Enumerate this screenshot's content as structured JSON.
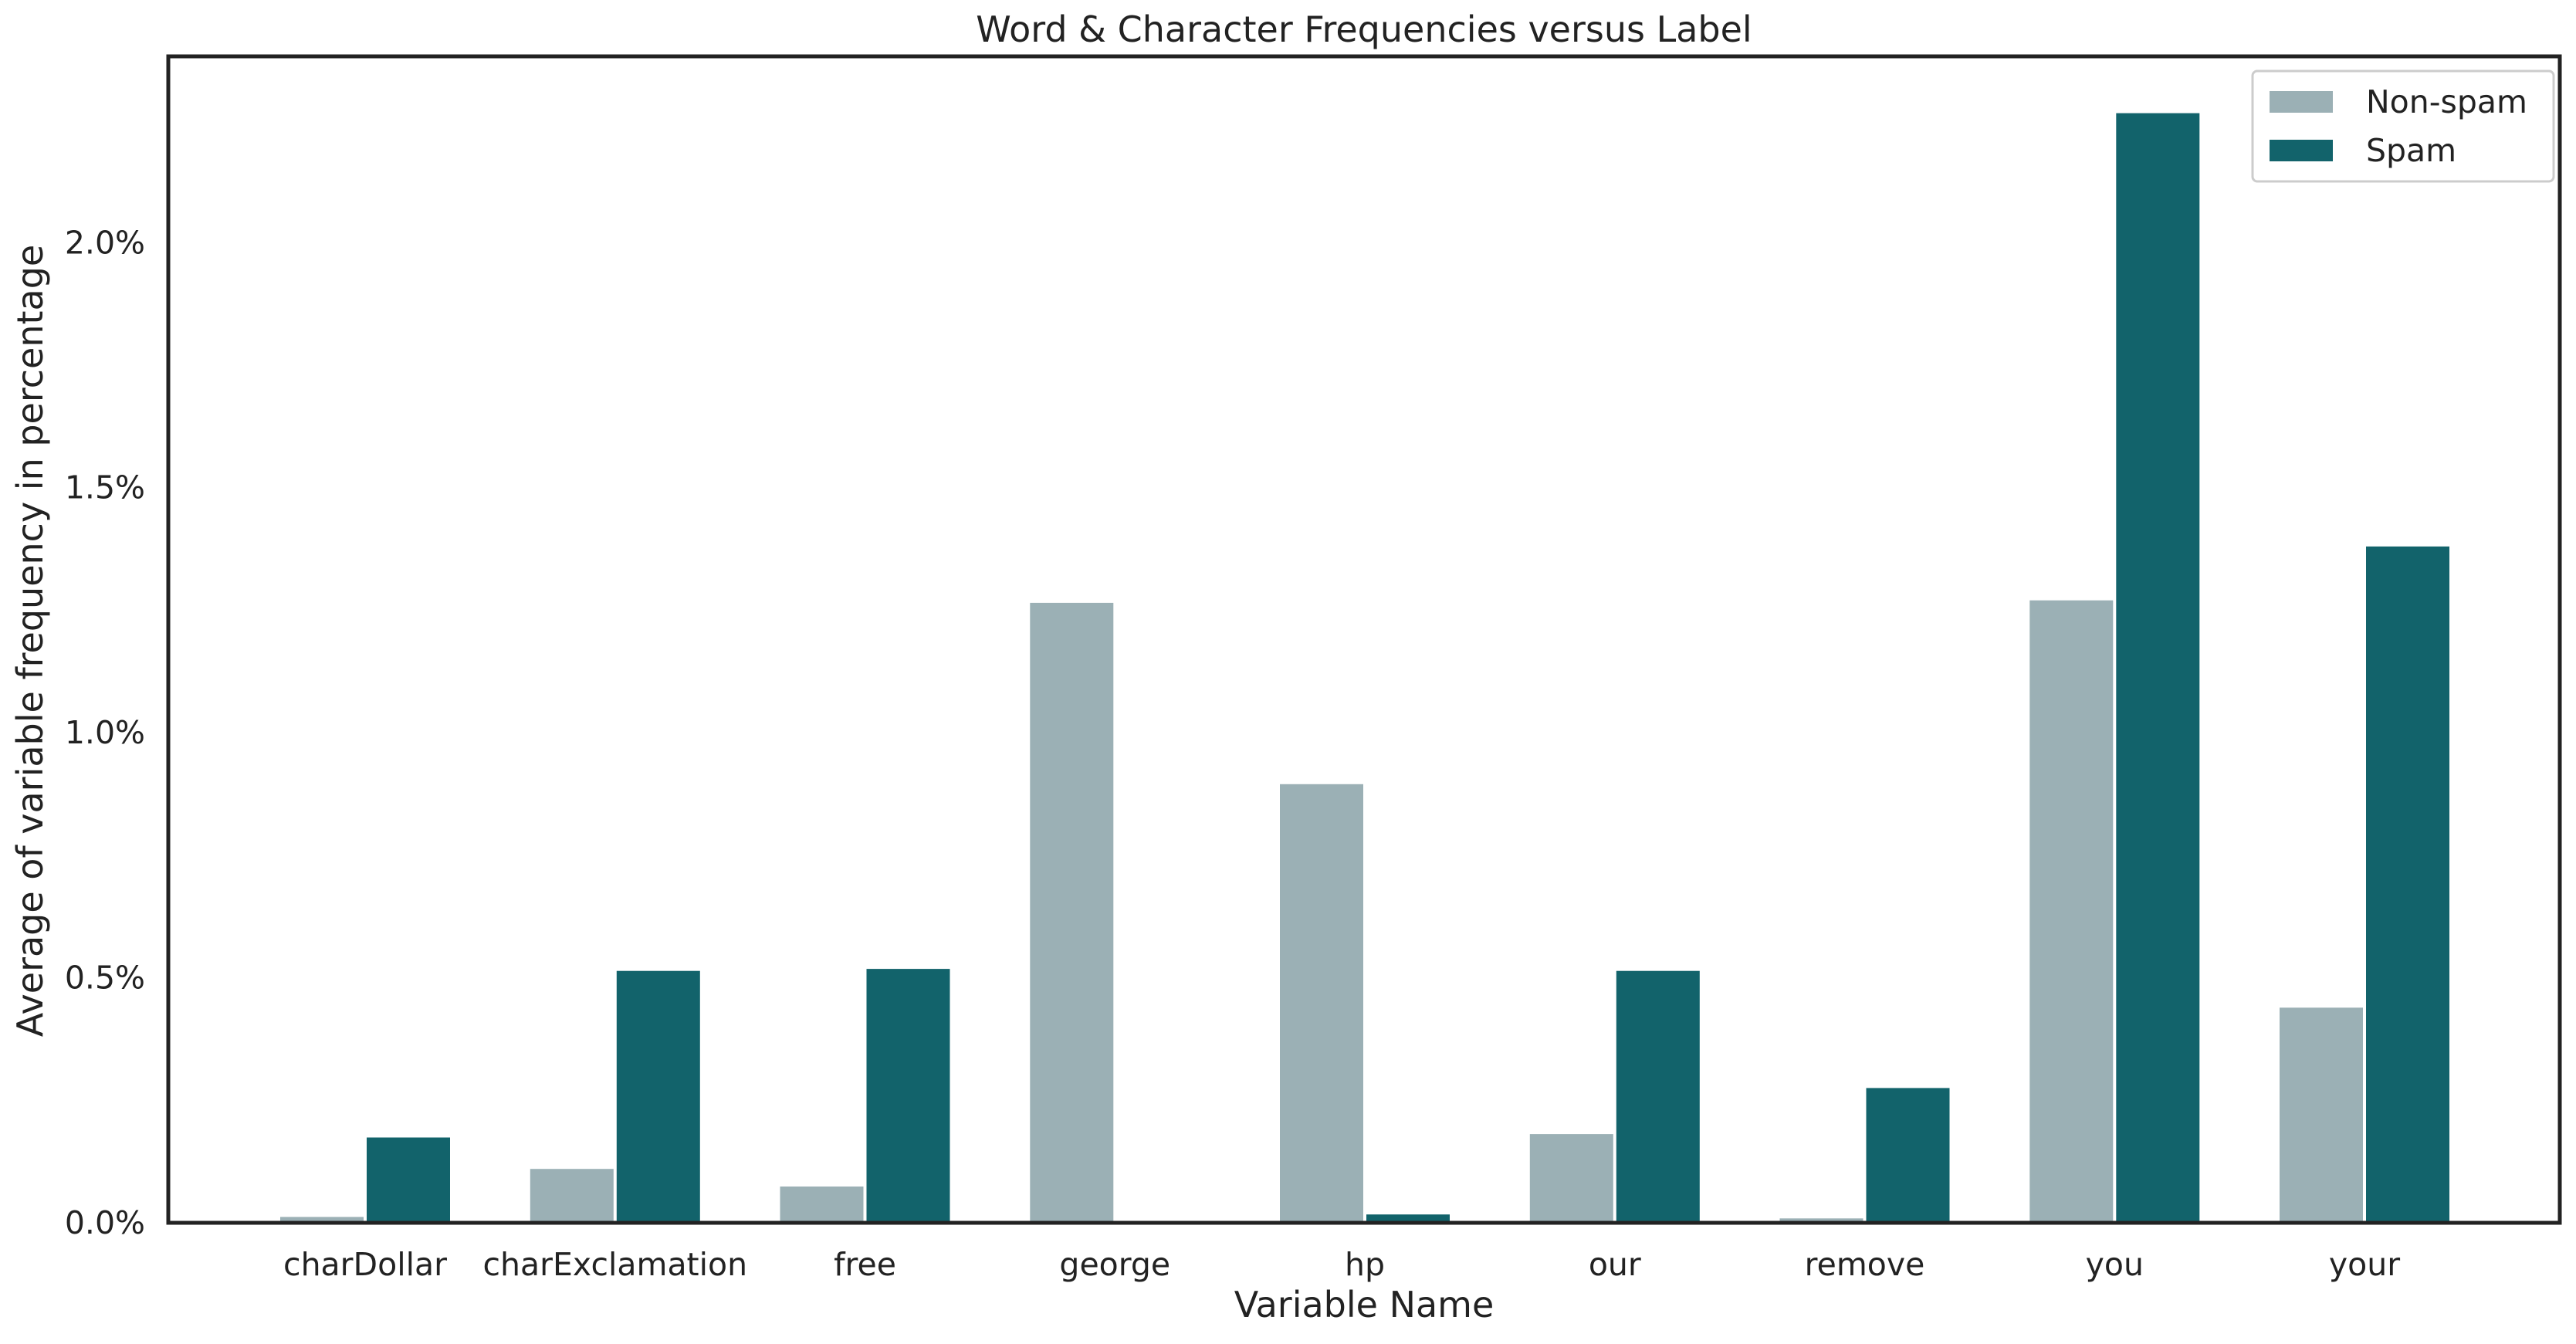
{
  "chart_data": {
    "type": "bar",
    "title": "Word & Character Frequencies versus Label",
    "xlabel": "Variable Name",
    "ylabel": "Average of variable frequency in percentage",
    "categories": [
      "charDollar",
      "charExclamation",
      "free",
      "george",
      "hp",
      "our",
      "remove",
      "you",
      "your"
    ],
    "series": [
      {
        "name": "Non-spam",
        "color": "#9bb0b5",
        "values": [
          0.012,
          0.11,
          0.074,
          1.265,
          0.895,
          0.181,
          0.009,
          1.27,
          0.439
        ]
      },
      {
        "name": "Spam",
        "color": "#12636b",
        "values": [
          0.174,
          0.514,
          0.518,
          0.0,
          0.017,
          0.514,
          0.275,
          2.264,
          1.38
        ]
      }
    ],
    "ylim": [
      0,
      2.38
    ],
    "yticks": [
      0.0,
      0.5,
      1.0,
      1.5,
      2.0
    ],
    "ytick_labels": [
      "0.0%",
      "0.5%",
      "1.0%",
      "1.5%",
      "2.0%"
    ],
    "grid": false,
    "legend_position": "top-right"
  }
}
